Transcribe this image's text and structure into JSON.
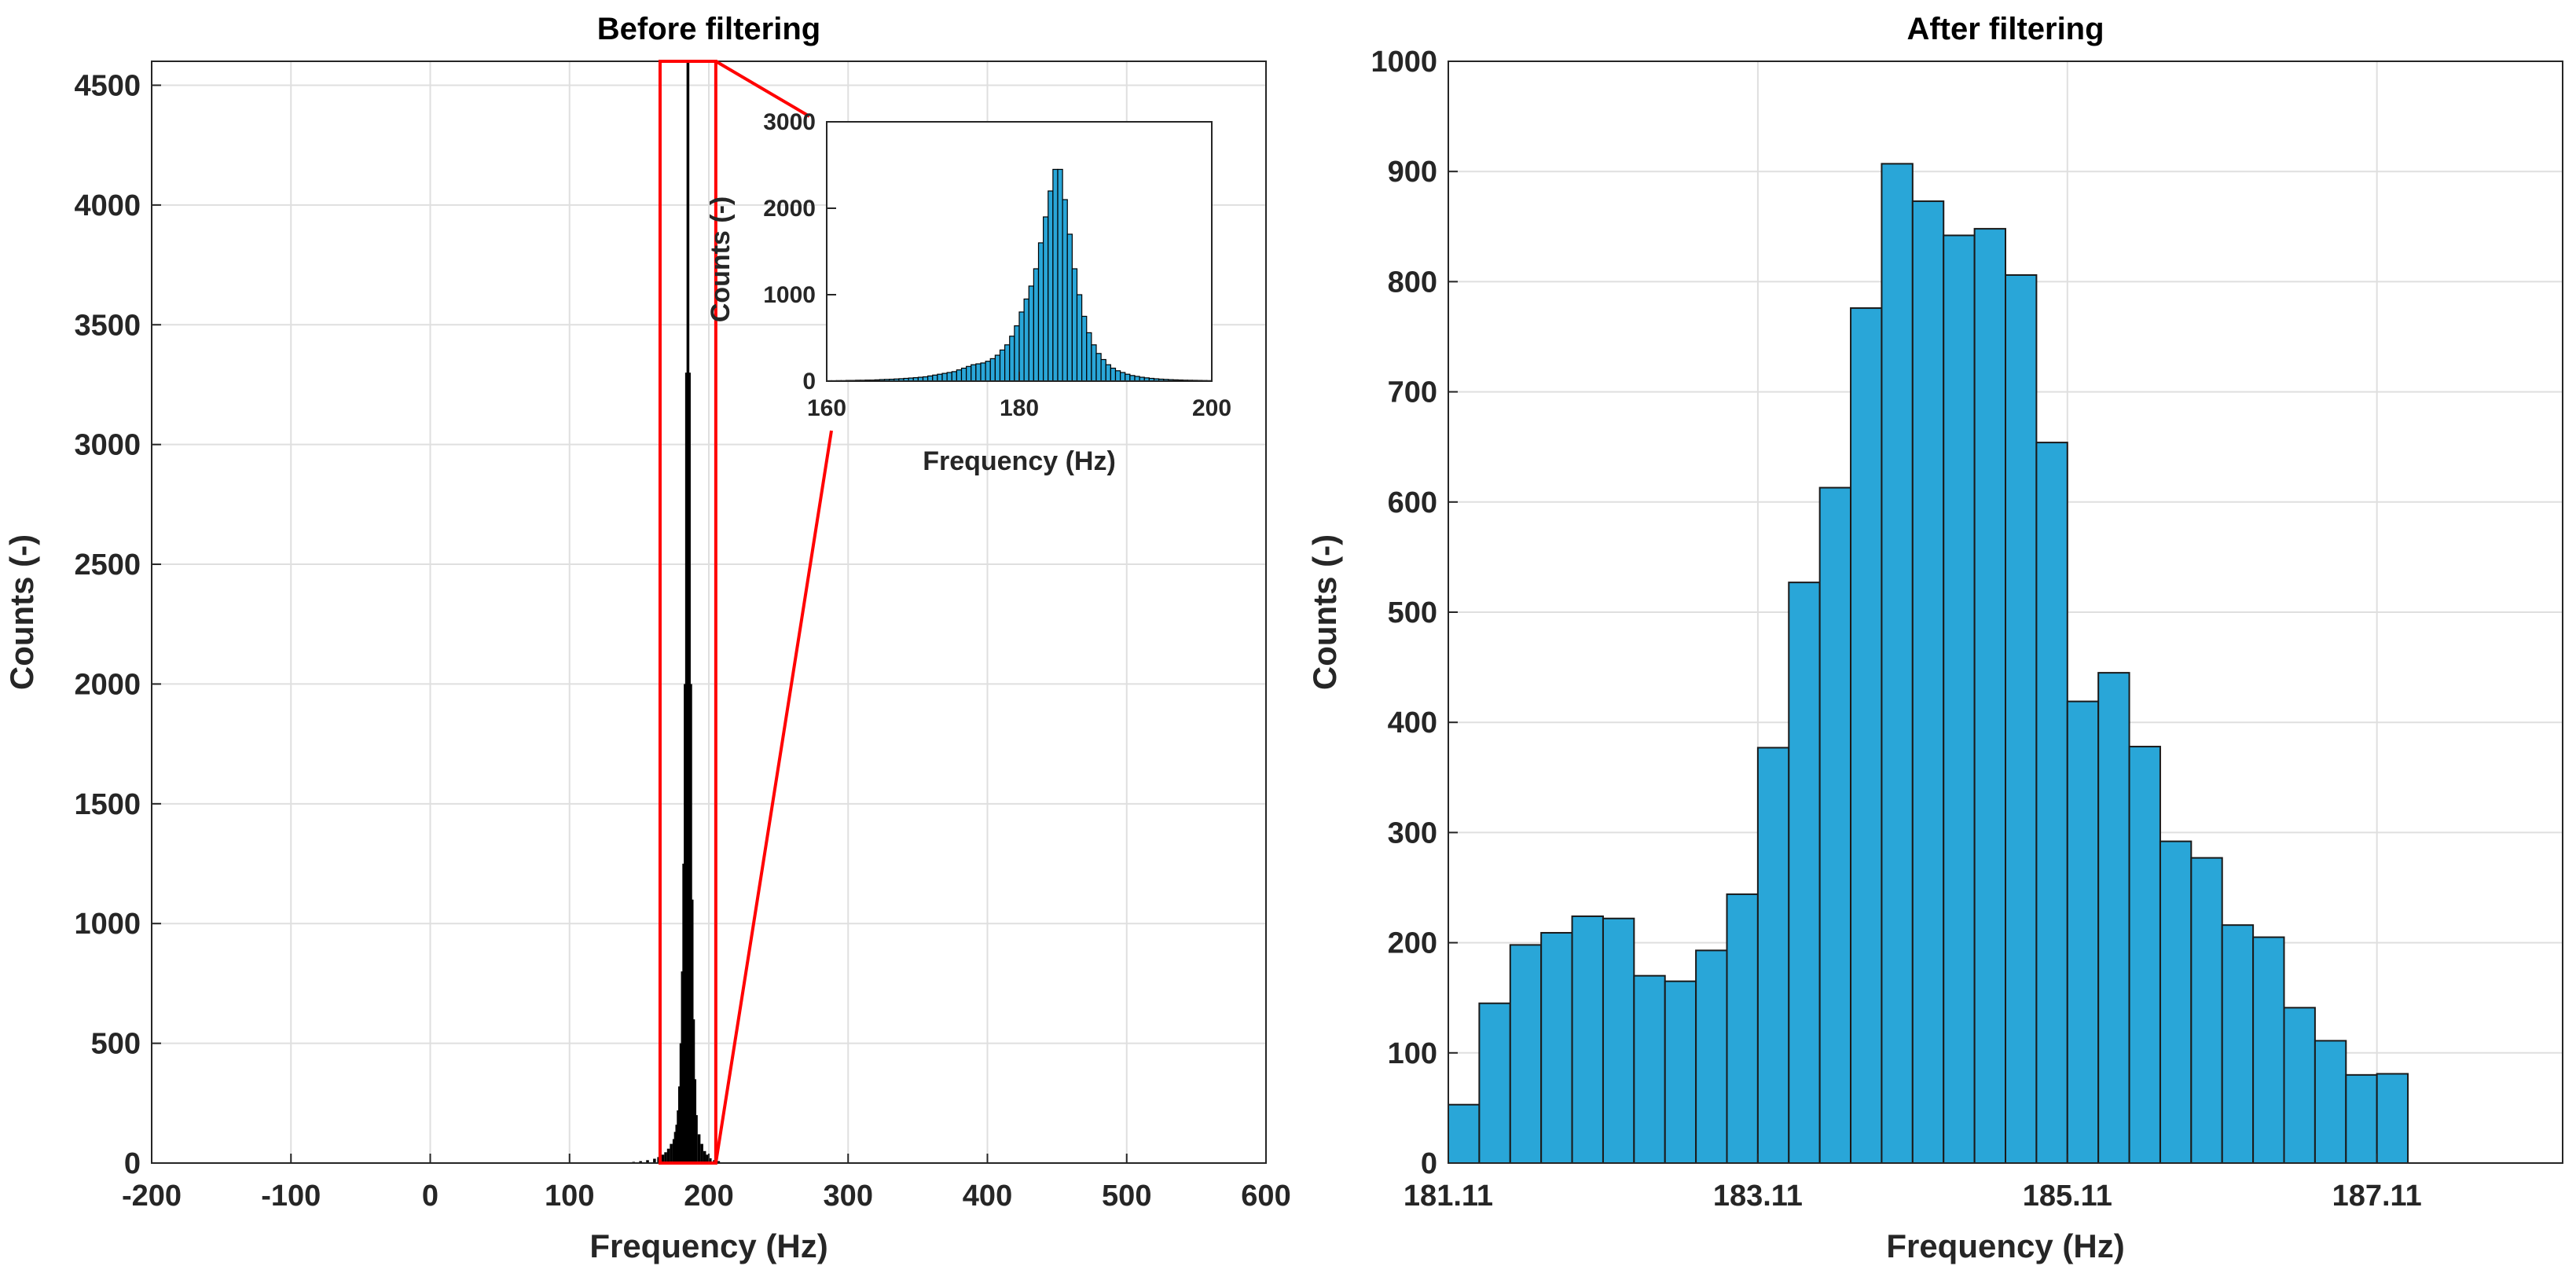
{
  "chart_data": [
    {
      "type": "bar",
      "title": "Before filtering",
      "xlabel": "Frequency (Hz)",
      "ylabel": "Counts (-)",
      "xlim": [
        -200,
        600
      ],
      "ylim": [
        0,
        4600
      ],
      "xticks": [
        "-200",
        "-100",
        "0",
        "100",
        "200",
        "300",
        "400",
        "500",
        "600"
      ],
      "yticks": [
        "0",
        "500",
        "1000",
        "1500",
        "2000",
        "2500",
        "3000",
        "3500",
        "4000",
        "4500"
      ],
      "grid": true,
      "bar_color": "#000000",
      "bins": {
        "x": [
          140,
          145,
          150,
          155,
          160,
          163,
          166,
          168,
          170,
          172,
          174,
          175,
          176,
          177,
          178,
          179,
          180,
          181,
          182,
          183,
          184,
          185,
          186,
          187,
          188,
          189,
          190,
          192,
          194,
          196,
          198,
          200,
          203,
          206,
          210
        ],
        "values": [
          3,
          5,
          8,
          12,
          18,
          25,
          35,
          45,
          60,
          80,
          100,
          130,
          160,
          220,
          320,
          500,
          800,
          1250,
          2000,
          3300,
          4600,
          3300,
          2000,
          1100,
          600,
          350,
          200,
          120,
          80,
          50,
          35,
          20,
          12,
          8,
          3
        ]
      },
      "zoom_box": {
        "x": [
          165,
          205
        ],
        "y": [
          0,
          4600
        ],
        "color": "#ff0000"
      }
    },
    {
      "type": "bar",
      "title": "",
      "xlabel": "Frequency (Hz)",
      "ylabel": "Counts (-)",
      "xlim": [
        160,
        200
      ],
      "ylim": [
        0,
        3000
      ],
      "xticks": [
        "160",
        "180",
        "200"
      ],
      "yticks": [
        "0",
        "1000",
        "2000",
        "3000"
      ],
      "grid": false,
      "bar_color": "#29a6d8",
      "bins": {
        "x": [
          160,
          160.5,
          161,
          161.5,
          162,
          162.5,
          163,
          163.5,
          164,
          164.5,
          165,
          165.5,
          166,
          166.5,
          167,
          167.5,
          168,
          168.5,
          169,
          169.5,
          170,
          170.5,
          171,
          171.5,
          172,
          172.5,
          173,
          173.5,
          174,
          174.5,
          175,
          175.5,
          176,
          176.5,
          177,
          177.5,
          178,
          178.5,
          179,
          179.5,
          180,
          180.5,
          181,
          181.5,
          182,
          182.5,
          183,
          183.5,
          184,
          184.5,
          185,
          185.5,
          186,
          186.5,
          187,
          187.5,
          188,
          188.5,
          189,
          189.5,
          190,
          190.5,
          191,
          191.5,
          192,
          192.5,
          193,
          193.5,
          194,
          194.5,
          195,
          195.5,
          196,
          196.5,
          197,
          197.5,
          198,
          198.5,
          199,
          199.5
        ],
        "values": [
          5,
          5,
          6,
          6,
          8,
          8,
          10,
          10,
          12,
          12,
          15,
          18,
          20,
          22,
          25,
          28,
          32,
          36,
          40,
          45,
          50,
          60,
          70,
          80,
          90,
          100,
          110,
          130,
          150,
          170,
          190,
          200,
          210,
          230,
          260,
          300,
          360,
          420,
          520,
          640,
          800,
          950,
          1100,
          1300,
          1600,
          1900,
          2200,
          2450,
          2450,
          2100,
          1700,
          1300,
          1000,
          750,
          560,
          420,
          320,
          250,
          190,
          150,
          120,
          100,
          80,
          65,
          55,
          45,
          38,
          32,
          27,
          23,
          20,
          17,
          15,
          13,
          11,
          10,
          9,
          8,
          7,
          6
        ]
      }
    },
    {
      "type": "bar",
      "title": "After filtering",
      "xlabel": "Frequency (Hz)",
      "ylabel": "Counts (-)",
      "xlim": [
        181.11,
        188.31
      ],
      "ylim": [
        0,
        1000
      ],
      "xticks": [
        "181.11",
        "183.11",
        "185.11",
        "187.11"
      ],
      "yticks": [
        "0",
        "100",
        "200",
        "300",
        "400",
        "500",
        "600",
        "700",
        "800",
        "900",
        "1000"
      ],
      "grid": true,
      "bar_color": "#29a6d8",
      "bin_edges_start": 181.11,
      "bin_width": 0.2,
      "values": [
        53,
        145,
        198,
        209,
        224,
        222,
        170,
        165,
        193,
        244,
        377,
        527,
        613,
        776,
        907,
        873,
        842,
        848,
        806,
        654,
        419,
        445,
        378,
        292,
        277,
        216,
        205,
        141,
        111,
        80,
        81
      ]
    }
  ]
}
